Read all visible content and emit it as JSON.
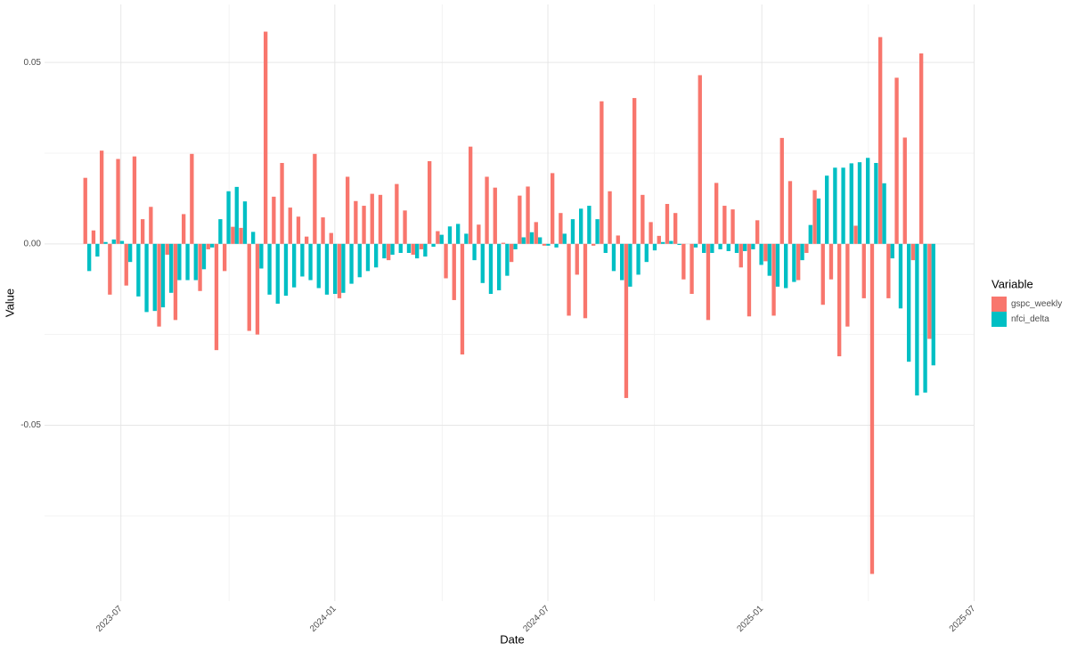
{
  "chart_data": {
    "type": "bar",
    "x_label": "Date",
    "y_label": "Value",
    "legend_title": "Variable",
    "legend": "right",
    "categories": [
      null,
      null,
      null,
      null,
      null,
      null,
      null,
      null,
      null,
      null,
      null,
      null,
      null,
      null,
      null,
      null,
      null,
      null,
      null,
      null,
      null,
      null,
      null,
      null,
      null,
      null,
      null,
      null,
      null,
      null,
      null,
      null,
      null,
      null,
      null,
      null,
      null,
      null,
      null,
      null,
      null,
      null,
      null,
      null,
      null,
      null,
      null,
      null,
      null,
      null,
      null,
      null,
      null,
      null,
      null,
      null,
      null,
      null,
      null,
      null,
      null,
      null,
      null,
      null,
      null,
      null,
      null,
      null,
      null,
      null,
      null,
      null,
      null,
      null,
      null,
      null,
      null,
      null,
      null,
      null,
      null,
      null,
      null,
      null,
      null,
      null,
      null,
      null,
      null,
      null,
      null,
      null,
      null,
      null,
      null,
      null,
      null,
      null,
      null,
      null,
      null,
      null,
      null,
      null
    ],
    "series": [
      {
        "name": "gspc_weekly",
        "color": "#F8766D",
        "values": [
          0.0182,
          0.0037,
          0.0257,
          -0.014,
          0.0234,
          -0.0115,
          0.0241,
          0.0068,
          0.0102,
          -0.0228,
          -0.003,
          -0.021,
          0.0082,
          0.0248,
          -0.013,
          -0.0015,
          -0.0293,
          -0.0075,
          0.0047,
          0.0044,
          -0.024,
          -0.025,
          0.0585,
          0.013,
          0.0223,
          0.01,
          0.0075,
          0.002,
          0.0248,
          0.0073,
          0.003,
          -0.015,
          0.0185,
          0.0118,
          0.0105,
          0.0138,
          0.0135,
          -0.0045,
          0.0165,
          0.0092,
          -0.003,
          -0.0015,
          0.0228,
          0.0035,
          -0.0095,
          -0.0155,
          -0.0305,
          0.0268,
          0.0053,
          0.0185,
          0.0155,
          0.0003,
          -0.005,
          0.0133,
          0.0158,
          0.006,
          -0.0005,
          0.0195,
          0.0085,
          -0.0198,
          -0.0085,
          -0.0205,
          -0.0005,
          0.0393,
          0.0145,
          0.0023,
          -0.0425,
          0.0402,
          0.0135,
          0.006,
          0.0022,
          0.011,
          0.0085,
          -0.0098,
          -0.0138,
          0.0465,
          -0.021,
          0.0168,
          0.0105,
          0.0095,
          -0.0065,
          -0.02,
          0.0065,
          -0.0048,
          -0.0198,
          0.0292,
          0.0173,
          -0.01,
          -0.0025,
          0.0148,
          -0.0168,
          -0.0098,
          -0.031,
          -0.0228,
          0.005,
          -0.015,
          -0.091,
          0.057,
          -0.015,
          0.0458,
          0.0293,
          -0.0045,
          0.0525,
          -0.0262
        ]
      },
      {
        "name": "nfci_delta",
        "color": "#00BFC4",
        "values": [
          -0.0075,
          -0.0035,
          0.0005,
          0.0012,
          0.0008,
          -0.005,
          -0.0145,
          -0.0188,
          -0.0185,
          -0.0175,
          -0.0135,
          -0.01,
          -0.01,
          -0.01,
          -0.007,
          -0.001,
          0.0068,
          0.0145,
          0.0157,
          0.0117,
          0.0033,
          -0.0068,
          -0.014,
          -0.0165,
          -0.0143,
          -0.012,
          -0.009,
          -0.01,
          -0.0122,
          -0.014,
          -0.0138,
          -0.0135,
          -0.011,
          -0.0092,
          -0.0075,
          -0.0065,
          -0.004,
          -0.003,
          -0.0025,
          -0.0025,
          -0.004,
          -0.0035,
          -0.0008,
          0.0025,
          0.0048,
          0.0055,
          0.0028,
          -0.0045,
          -0.0108,
          -0.0138,
          -0.0128,
          -0.0088,
          -0.0015,
          0.0018,
          0.0032,
          0.0018,
          -0.0005,
          -0.001,
          0.0028,
          0.0068,
          0.0097,
          0.0105,
          0.0068,
          -0.0025,
          -0.0075,
          -0.01,
          -0.0118,
          -0.0085,
          -0.005,
          -0.0018,
          0.0005,
          0.0008,
          -0.0003,
          0.0,
          -0.001,
          -0.0025,
          -0.0025,
          -0.0015,
          -0.002,
          -0.0025,
          -0.002,
          -0.0015,
          -0.0058,
          -0.0088,
          -0.0118,
          -0.0122,
          -0.0105,
          -0.0045,
          0.0052,
          0.0125,
          0.0188,
          0.021,
          0.021,
          0.0222,
          0.0225,
          0.0237,
          0.0223,
          0.0167,
          -0.004,
          -0.0178,
          -0.0325,
          -0.0418,
          -0.041,
          -0.0335
        ]
      }
    ],
    "xlim": [
      -5.217,
      108.15
    ],
    "xticks": [
      {
        "value": 4.1,
        "label": "2023-07"
      },
      {
        "value": 30.2,
        "label": "2024-01"
      },
      {
        "value": 56.2,
        "label": "2024-07"
      },
      {
        "value": 82.3,
        "label": "2025-01"
      },
      {
        "value": 108.2,
        "label": "2025-07"
      }
    ],
    "xminor": [
      17.3,
      43.3,
      69.2,
      95.3
    ],
    "ylim": [
      -0.0985,
      0.066
    ],
    "yticks": [
      -0.05,
      {
        "value": 0,
        "label": "0.00"
      },
      0.05
    ],
    "yminor": [
      -0.075,
      -0.025,
      0.025
    ],
    "grid": true
  }
}
